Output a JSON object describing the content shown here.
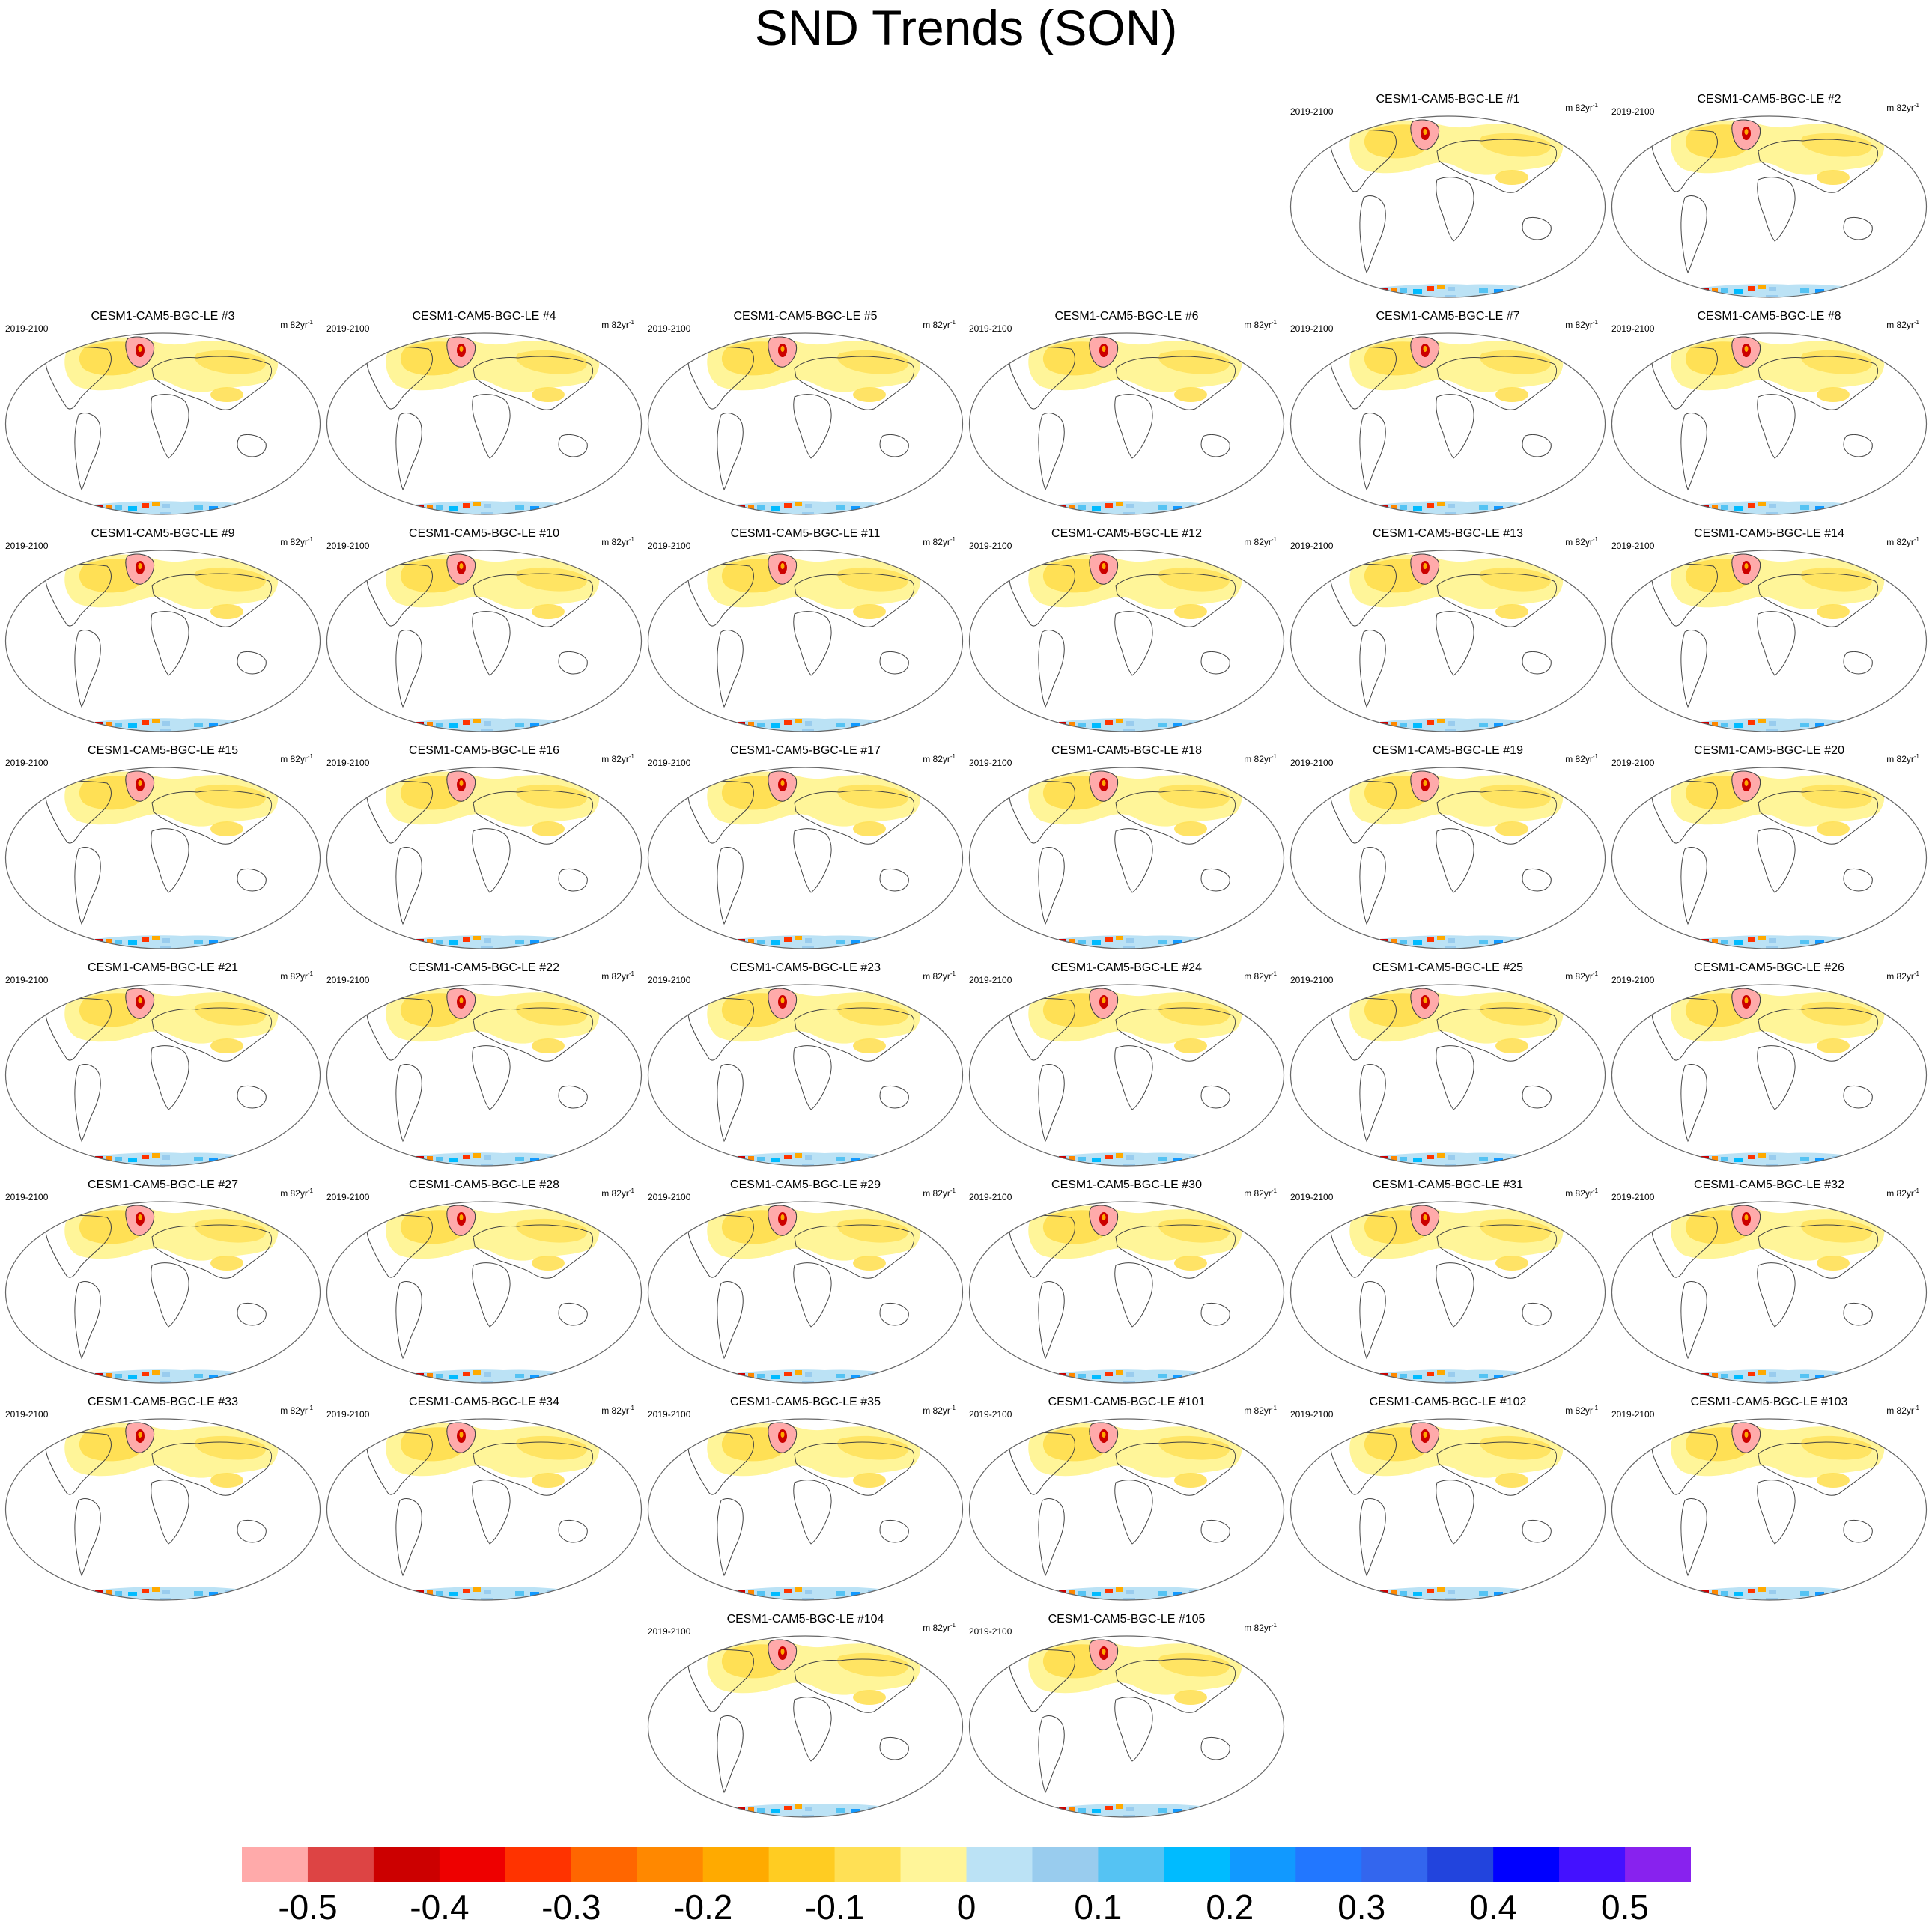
{
  "title": "SND Trends (SON)",
  "panel_period": "2019-2100",
  "panel_units_base": "m 82yr",
  "panel_units_exp": "-1",
  "panels": [
    {
      "label": "CESM1-CAM5-BGC-LE #1"
    },
    {
      "label": "CESM1-CAM5-BGC-LE #2"
    },
    {
      "label": "CESM1-CAM5-BGC-LE #3"
    },
    {
      "label": "CESM1-CAM5-BGC-LE #4"
    },
    {
      "label": "CESM1-CAM5-BGC-LE #5"
    },
    {
      "label": "CESM1-CAM5-BGC-LE #6"
    },
    {
      "label": "CESM1-CAM5-BGC-LE #7"
    },
    {
      "label": "CESM1-CAM5-BGC-LE #8"
    },
    {
      "label": "CESM1-CAM5-BGC-LE #9"
    },
    {
      "label": "CESM1-CAM5-BGC-LE #10"
    },
    {
      "label": "CESM1-CAM5-BGC-LE #11"
    },
    {
      "label": "CESM1-CAM5-BGC-LE #12"
    },
    {
      "label": "CESM1-CAM5-BGC-LE #13"
    },
    {
      "label": "CESM1-CAM5-BGC-LE #14"
    },
    {
      "label": "CESM1-CAM5-BGC-LE #15"
    },
    {
      "label": "CESM1-CAM5-BGC-LE #16"
    },
    {
      "label": "CESM1-CAM5-BGC-LE #17"
    },
    {
      "label": "CESM1-CAM5-BGC-LE #18"
    },
    {
      "label": "CESM1-CAM5-BGC-LE #19"
    },
    {
      "label": "CESM1-CAM5-BGC-LE #20"
    },
    {
      "label": "CESM1-CAM5-BGC-LE #21"
    },
    {
      "label": "CESM1-CAM5-BGC-LE #22"
    },
    {
      "label": "CESM1-CAM5-BGC-LE #23"
    },
    {
      "label": "CESM1-CAM5-BGC-LE #24"
    },
    {
      "label": "CESM1-CAM5-BGC-LE #25"
    },
    {
      "label": "CESM1-CAM5-BGC-LE #26"
    },
    {
      "label": "CESM1-CAM5-BGC-LE #27"
    },
    {
      "label": "CESM1-CAM5-BGC-LE #28"
    },
    {
      "label": "CESM1-CAM5-BGC-LE #29"
    },
    {
      "label": "CESM1-CAM5-BGC-LE #30"
    },
    {
      "label": "CESM1-CAM5-BGC-LE #31"
    },
    {
      "label": "CESM1-CAM5-BGC-LE #32"
    },
    {
      "label": "CESM1-CAM5-BGC-LE #33"
    },
    {
      "label": "CESM1-CAM5-BGC-LE #34"
    },
    {
      "label": "CESM1-CAM5-BGC-LE #35"
    },
    {
      "label": "CESM1-CAM5-BGC-LE #101"
    },
    {
      "label": "CESM1-CAM5-BGC-LE #102"
    },
    {
      "label": "CESM1-CAM5-BGC-LE #103"
    },
    {
      "label": "CESM1-CAM5-BGC-LE #104"
    },
    {
      "label": "CESM1-CAM5-BGC-LE #105"
    }
  ],
  "colorbar": {
    "colors": [
      "#ffaaaa",
      "#dd4444",
      "#cc0000",
      "#ee0000",
      "#ff3300",
      "#ff6600",
      "#ff8800",
      "#ffaa00",
      "#ffcc22",
      "#ffe055",
      "#fff599",
      "#bbe2f5",
      "#99ccee",
      "#55c3f3",
      "#00bbff",
      "#1199ff",
      "#2277ff",
      "#3366ee",
      "#2244dd",
      "#0000ff",
      "#4411ff",
      "#8822ee"
    ],
    "tick_labels": [
      "-0.5",
      "-0.4",
      "-0.3",
      "-0.2",
      "-0.1",
      "0",
      "0.1",
      "0.2",
      "0.3",
      "0.4",
      "0.5"
    ],
    "tick_values": [
      -0.5,
      -0.4,
      -0.3,
      -0.2,
      -0.1,
      0,
      0.1,
      0.2,
      0.3,
      0.4,
      0.5
    ],
    "min": -0.55,
    "max": 0.55
  },
  "chart_data": {
    "type": "heatmap",
    "title": "SND Trends (SON)",
    "period": "2019-2100",
    "units": "m 82yr-1",
    "panels": [
      "CESM1-CAM5-BGC-LE #1",
      "CESM1-CAM5-BGC-LE #2",
      "CESM1-CAM5-BGC-LE #3",
      "CESM1-CAM5-BGC-LE #4",
      "CESM1-CAM5-BGC-LE #5",
      "CESM1-CAM5-BGC-LE #6",
      "CESM1-CAM5-BGC-LE #7",
      "CESM1-CAM5-BGC-LE #8",
      "CESM1-CAM5-BGC-LE #9",
      "CESM1-CAM5-BGC-LE #10",
      "CESM1-CAM5-BGC-LE #11",
      "CESM1-CAM5-BGC-LE #12",
      "CESM1-CAM5-BGC-LE #13",
      "CESM1-CAM5-BGC-LE #14",
      "CESM1-CAM5-BGC-LE #15",
      "CESM1-CAM5-BGC-LE #16",
      "CESM1-CAM5-BGC-LE #17",
      "CESM1-CAM5-BGC-LE #18",
      "CESM1-CAM5-BGC-LE #19",
      "CESM1-CAM5-BGC-LE #20",
      "CESM1-CAM5-BGC-LE #21",
      "CESM1-CAM5-BGC-LE #22",
      "CESM1-CAM5-BGC-LE #23",
      "CESM1-CAM5-BGC-LE #24",
      "CESM1-CAM5-BGC-LE #25",
      "CESM1-CAM5-BGC-LE #26",
      "CESM1-CAM5-BGC-LE #27",
      "CESM1-CAM5-BGC-LE #28",
      "CESM1-CAM5-BGC-LE #29",
      "CESM1-CAM5-BGC-LE #30",
      "CESM1-CAM5-BGC-LE #31",
      "CESM1-CAM5-BGC-LE #32",
      "CESM1-CAM5-BGC-LE #33",
      "CESM1-CAM5-BGC-LE #34",
      "CESM1-CAM5-BGC-LE #35",
      "CESM1-CAM5-BGC-LE #101",
      "CESM1-CAM5-BGC-LE #102",
      "CESM1-CAM5-BGC-LE #103",
      "CESM1-CAM5-BGC-LE #104",
      "CESM1-CAM5-BGC-LE #105"
    ],
    "colorbar_range": [
      -0.55,
      0.55
    ],
    "colorbar_ticks": [
      -0.5,
      -0.4,
      -0.3,
      -0.2,
      -0.1,
      0,
      0.1,
      0.2,
      0.3,
      0.4,
      0.5
    ]
  }
}
